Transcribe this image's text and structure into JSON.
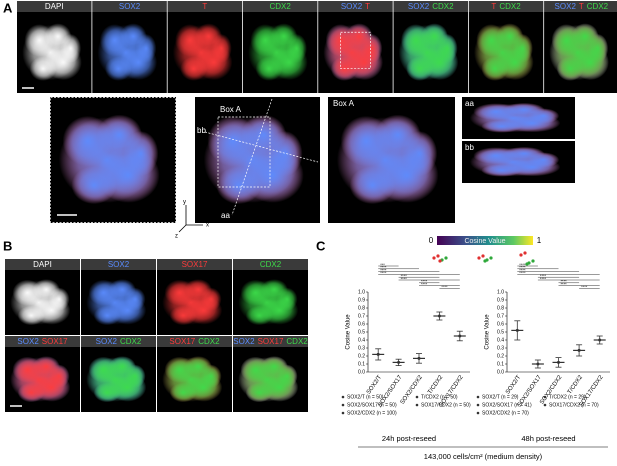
{
  "panel_a": {
    "letter": "A",
    "top_row": [
      {
        "parts": [
          {
            "text": "DAPI",
            "color": "#ffffff"
          }
        ]
      },
      {
        "parts": [
          {
            "text": "SOX2",
            "color": "#5b8cff"
          }
        ]
      },
      {
        "parts": [
          {
            "text": "T",
            "color": "#ff3b3b"
          }
        ]
      },
      {
        "parts": [
          {
            "text": "CDX2",
            "color": "#3ddc4a"
          }
        ]
      },
      {
        "parts": [
          {
            "text": "SOX2",
            "color": "#5b8cff"
          },
          {
            "text": "T",
            "color": "#ff3b3b"
          }
        ]
      },
      {
        "parts": [
          {
            "text": "SOX2",
            "color": "#5b8cff"
          },
          {
            "text": "CDX2",
            "color": "#3ddc4a"
          }
        ]
      },
      {
        "parts": [
          {
            "text": "T",
            "color": "#ff3b3b"
          },
          {
            "text": "CDX2",
            "color": "#3ddc4a"
          }
        ]
      },
      {
        "parts": [
          {
            "text": "SOX2",
            "color": "#5b8cff"
          },
          {
            "text": "T",
            "color": "#ff3b3b"
          },
          {
            "text": "CDX2",
            "color": "#3ddc4a"
          }
        ]
      }
    ],
    "box_label_3d": "Box A",
    "box_label_zoom": "Box A",
    "line_bb": "bb",
    "line_aa": "aa",
    "view_aa": "aa",
    "view_bb": "bb",
    "axes": {
      "y": "y",
      "x": "x",
      "z": "z"
    }
  },
  "panel_b": {
    "letter": "B",
    "top_row": [
      {
        "parts": [
          {
            "text": "DAPI",
            "color": "#ffffff"
          }
        ]
      },
      {
        "parts": [
          {
            "text": "SOX2",
            "color": "#5b8cff"
          }
        ]
      },
      {
        "parts": [
          {
            "text": "SOX17",
            "color": "#ff3b3b"
          }
        ]
      },
      {
        "parts": [
          {
            "text": "CDX2",
            "color": "#3ddc4a"
          }
        ]
      }
    ],
    "bottom_row": [
      {
        "parts": [
          {
            "text": "SOX2",
            "color": "#5b8cff"
          },
          {
            "text": "SOX17",
            "color": "#ff3b3b"
          }
        ]
      },
      {
        "parts": [
          {
            "text": "SOX2",
            "color": "#5b8cff"
          },
          {
            "text": "CDX2",
            "color": "#3ddc4a"
          }
        ]
      },
      {
        "parts": [
          {
            "text": "SOX17",
            "color": "#ff3b3b"
          },
          {
            "text": "CDX2",
            "color": "#3ddc4a"
          }
        ]
      },
      {
        "parts": [
          {
            "text": "SOX2",
            "color": "#5b8cff"
          },
          {
            "text": "SOX17",
            "color": "#ff3b3b"
          },
          {
            "text": "CDX2",
            "color": "#3ddc4a"
          }
        ]
      }
    ]
  },
  "panel_c": {
    "letter": "C",
    "colorbar": {
      "min": 0,
      "label": "Cosine Value",
      "max": 1
    },
    "density_label": "143,000 cells/cm² (medium density)",
    "chart_data": [
      {
        "type": "dot",
        "caption": "24h post-reseed",
        "ylabel": "Cosine Value",
        "ylim": [
          0,
          1
        ],
        "yticks": [
          {
            "value": 0,
            "label": "0.0"
          },
          0.1,
          0.2,
          0.3,
          0.4,
          0.5,
          0.6,
          0.7,
          0.8,
          0.9,
          {
            "value": 1,
            "label": "1.0"
          }
        ],
        "categories": [
          "SOX2/T",
          "SOX2/SOX17",
          "SOX2/CDX2",
          "T/CDX2",
          "SOX17/CDX2"
        ],
        "values": [
          0.22,
          0.12,
          0.17,
          0.7,
          0.45
        ],
        "errors": [
          0.07,
          0.04,
          0.06,
          0.05,
          0.06
        ],
        "color": "#333333",
        "legend": [
          "SOX2/T (n = 50)",
          "SOX2/SOX17 (n = 50)",
          "SOX2/CDX2 (n = 100)",
          "T/CDX2 (n = 50)",
          "SOX17/CDX2 (n = 50)"
        ],
        "comparisons": [
          {
            "pair": [
              0,
              1
            ],
            "label": "***"
          },
          {
            "pair": [
              0,
              2
            ],
            "label": "****"
          },
          {
            "pair": [
              0,
              3
            ],
            "label": "****"
          },
          {
            "pair": [
              0,
              4
            ],
            "label": "****"
          },
          {
            "pair": [
              1,
              3
            ],
            "label": "****"
          },
          {
            "pair": [
              1,
              4
            ],
            "label": "****"
          },
          {
            "pair": [
              2,
              3
            ],
            "label": "****"
          },
          {
            "pair": [
              2,
              4
            ],
            "label": "****"
          },
          {
            "pair": [
              3,
              4
            ],
            "label": "****"
          }
        ]
      },
      {
        "type": "dot",
        "caption": "48h post-reseed",
        "ylabel": "Cosine Value",
        "ylim": [
          0,
          1
        ],
        "yticks": [
          {
            "value": 0,
            "label": "0.0"
          },
          0.1,
          0.2,
          0.3,
          0.4,
          0.5,
          0.6,
          0.7,
          0.8,
          0.9,
          {
            "value": 1,
            "label": "1.0"
          }
        ],
        "categories": [
          "SOX2/T",
          "SOX2/SOX17",
          "SOX2/CDX2",
          "T/CDX2",
          "SOX17/CDX2"
        ],
        "values": [
          0.52,
          0.1,
          0.12,
          0.27,
          0.4
        ],
        "errors": [
          0.12,
          0.05,
          0.06,
          0.07,
          0.05
        ],
        "color": "#333333",
        "legend": [
          "SOX2/T (n = 29)",
          "SOX2/SOX17 (n = 41)",
          "SOX2/CDX2 (n = 70)",
          "T/CDX2 (n = 29)",
          "SOX17/CDX2 (n = 70)"
        ],
        "comparisons": [
          {
            "pair": [
              0,
              1
            ],
            "label": "****"
          },
          {
            "pair": [
              0,
              2
            ],
            "label": "****"
          },
          {
            "pair": [
              0,
              3
            ],
            "label": "****"
          },
          {
            "pair": [
              0,
              4
            ],
            "label": "****"
          },
          {
            "pair": [
              1,
              3
            ],
            "label": "****"
          },
          {
            "pair": [
              1,
              4
            ],
            "label": "****"
          },
          {
            "pair": [
              2,
              3
            ],
            "label": "****"
          },
          {
            "pair": [
              2,
              4
            ],
            "label": "****"
          },
          {
            "pair": [
              3,
              4
            ],
            "label": "****"
          }
        ]
      }
    ]
  }
}
